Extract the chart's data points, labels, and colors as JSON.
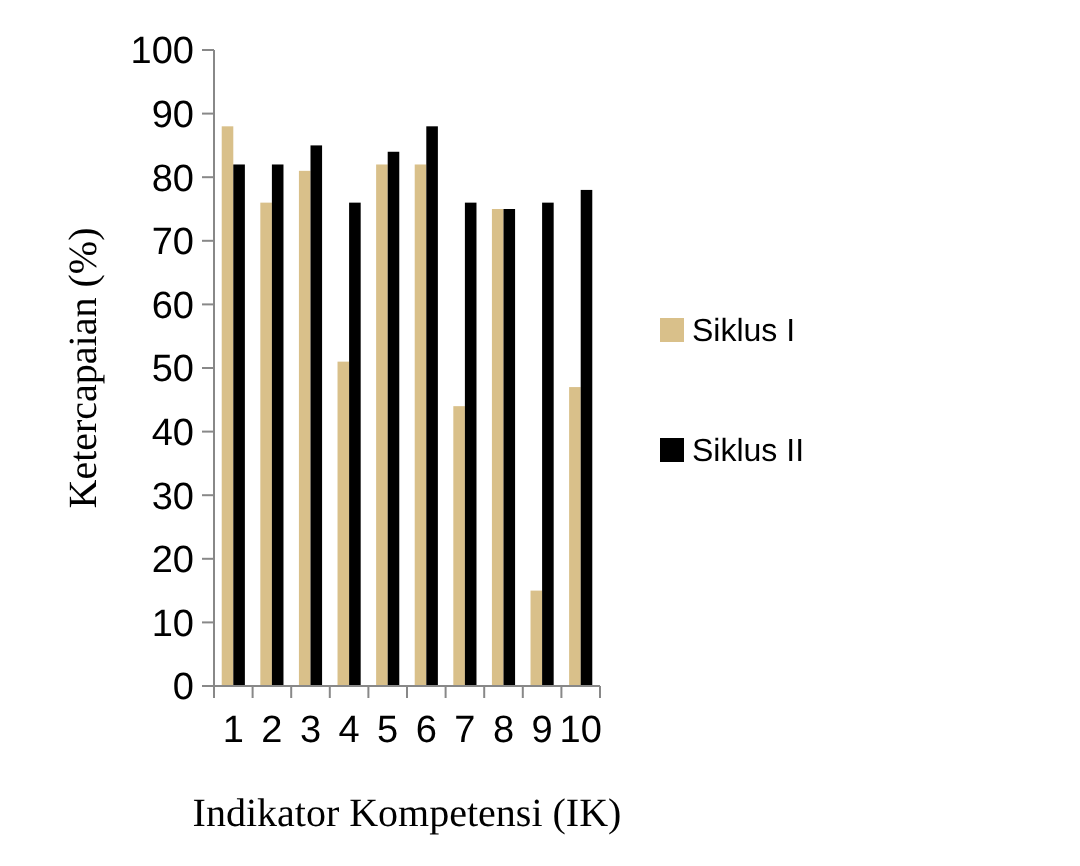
{
  "chart_data": {
    "type": "bar",
    "xlabel": "Indikator Kompetensi (IK)",
    "ylabel": "Ketercapaian (%)",
    "categories": [
      "1",
      "2",
      "3",
      "4",
      "5",
      "6",
      "7",
      "8",
      "9",
      "10"
    ],
    "series": [
      {
        "name": "Siklus I",
        "color": "#d9c08a",
        "values": [
          88,
          76,
          81,
          51,
          82,
          82,
          44,
          75,
          15,
          47
        ]
      },
      {
        "name": "Siklus II",
        "color": "#000000",
        "values": [
          82,
          82,
          85,
          76,
          84,
          88,
          76,
          75,
          76,
          78
        ]
      }
    ],
    "ylim": [
      0,
      100
    ],
    "yticks": [
      0,
      10,
      20,
      30,
      40,
      50,
      60,
      70,
      80,
      90,
      100
    ],
    "legend": "right"
  }
}
